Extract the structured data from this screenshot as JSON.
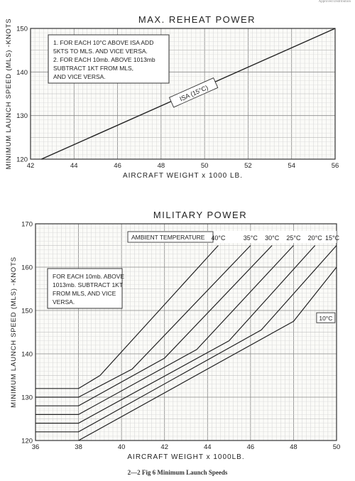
{
  "header_corner_text": "Approved Distribution",
  "caption": "2—2 Fig 6  Minimum Launch Speeds",
  "chart_data": [
    {
      "type": "line",
      "title": "MAX. REHEAT POWER",
      "xlabel": "AIRCRAFT WEIGHT x 1000 LB.",
      "ylabel": "MINIMUM LAUNCH SPEED (MLS) -KNOTS",
      "xlim": [
        42,
        56
      ],
      "ylim": [
        120,
        150
      ],
      "x_ticks": [
        42,
        44,
        46,
        48,
        50,
        52,
        54,
        56
      ],
      "y_ticks": [
        120,
        130,
        140,
        150
      ],
      "grid": true,
      "notes": [
        "1. FOR EACH 10°C ABOVE ISA ADD",
        "5KTS TO MLS. AND VICE VERSA.",
        "2. FOR EACH 10mb. ABOVE 1013mb",
        "SUBTRACT 1KT FROM MLS,",
        "AND VICE VERSA."
      ],
      "series": [
        {
          "name": "ISA (15°C)",
          "x": [
            42.5,
            56
          ],
          "y": [
            120,
            150
          ]
        }
      ]
    },
    {
      "type": "line",
      "title": "MILITARY POWER",
      "xlabel": "AIRCRAFT WEIGHT x 1000LB.",
      "ylabel": "MINIMUM LAUNCH SPEED (MLS) -KNOTS",
      "xlim": [
        36,
        50
      ],
      "ylim": [
        120,
        170
      ],
      "x_ticks": [
        36,
        38,
        40,
        42,
        44,
        46,
        48,
        50
      ],
      "y_ticks": [
        120,
        130,
        140,
        150,
        160,
        170
      ],
      "grid": true,
      "legend_title": "AMBIENT TEMPERATURE",
      "notes": [
        "FOR EACH 10mb. ABOVE",
        "1013mb. SUBTRACT 1KT",
        "FROM MLS, AND VICE",
        "VERSA."
      ],
      "series": [
        {
          "name": "40°C",
          "x": [
            36,
            38,
            39,
            44.5
          ],
          "y": [
            132,
            132,
            135,
            165
          ]
        },
        {
          "name": "35°C",
          "x": [
            36,
            38,
            40.5,
            46
          ],
          "y": [
            130,
            130,
            136.5,
            165
          ]
        },
        {
          "name": "30°C",
          "x": [
            36,
            38,
            42,
            47
          ],
          "y": [
            128,
            128,
            139,
            165
          ]
        },
        {
          "name": "25°C",
          "x": [
            36,
            38,
            43.5,
            48
          ],
          "y": [
            126,
            126,
            141,
            165
          ]
        },
        {
          "name": "20°C",
          "x": [
            36,
            38,
            45,
            49
          ],
          "y": [
            124,
            124,
            143,
            165
          ]
        },
        {
          "name": "15°C",
          "x": [
            36,
            38,
            46.5,
            50
          ],
          "y": [
            122,
            122,
            145.5,
            165
          ]
        },
        {
          "name": "10°C",
          "x": [
            38,
            48,
            50
          ],
          "y": [
            120,
            147.5,
            160
          ]
        }
      ]
    }
  ]
}
